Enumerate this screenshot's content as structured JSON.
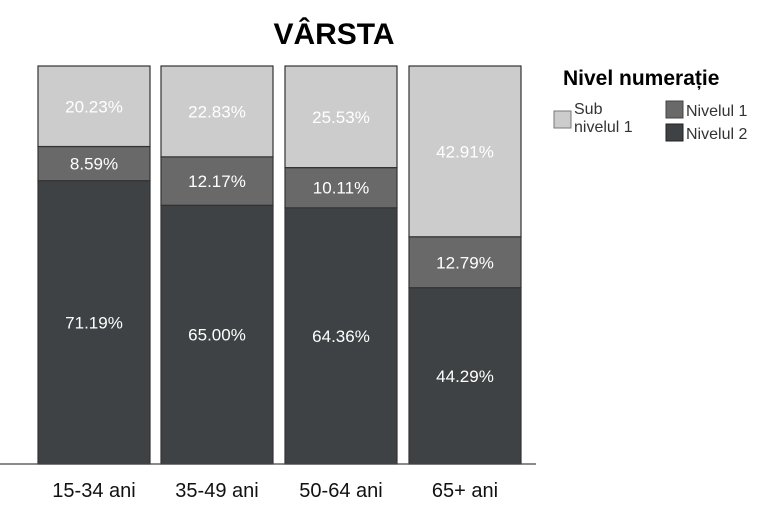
{
  "chart_data": {
    "type": "bar",
    "stacked": true,
    "title": "VÂRSTA",
    "categories": [
      "15-34 ani",
      "35-49 ani",
      "50-64 ani",
      "65+ ani"
    ],
    "series": [
      {
        "name": "Nivelul 2",
        "color": "#3f4244",
        "values": [
          71.19,
          65.0,
          64.36,
          44.29
        ],
        "labels": [
          "71.19%",
          "65.00%",
          "64.36%",
          "44.29%"
        ]
      },
      {
        "name": "Nivelul 1",
        "color": "#696969",
        "values": [
          8.59,
          12.17,
          10.11,
          12.79
        ],
        "labels": [
          "8.59%",
          "12.17%",
          "10.11%",
          "12.79%"
        ]
      },
      {
        "name": "Sub nivelul 1",
        "color": "#cccccc",
        "values": [
          20.23,
          22.83,
          25.53,
          42.91
        ],
        "labels": [
          "20.23%",
          "22.83%",
          "25.53%",
          "42.91%"
        ]
      }
    ],
    "ylim": [
      0,
      100
    ],
    "grid": false,
    "legend": {
      "title": "Nivel numerație",
      "position": "right",
      "items": [
        "Sub nivelul 1",
        "Nivelul 1",
        "Nivelul 2"
      ]
    }
  }
}
